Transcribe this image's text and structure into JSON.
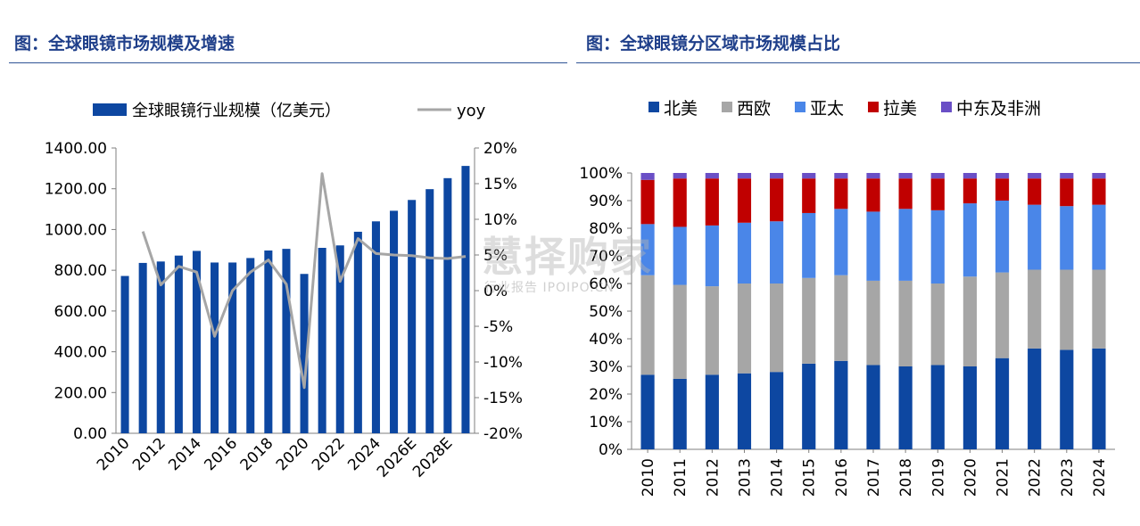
{
  "chart_data": [
    {
      "type": "bar",
      "title": "图：全球眼镜市场规模及增速",
      "categories": [
        "2010",
        "2011",
        "2012",
        "2013",
        "2014",
        "2015",
        "2016",
        "2017",
        "2018",
        "2019",
        "2020",
        "2021",
        "2022",
        "2023",
        "2024",
        "2025",
        "2026E",
        "2027",
        "2028E",
        "2029"
      ],
      "x_tick_labels": [
        "2010",
        "2012",
        "2014",
        "2016",
        "2018",
        "2020",
        "2022",
        "2024",
        "2026E",
        "2028E"
      ],
      "series": [
        {
          "name": "全球眼镜行业规模（亿美元）",
          "type": "bar",
          "axis": "left",
          "color": "#0d47a1",
          "values": [
            772,
            836,
            843,
            872,
            895,
            838,
            838,
            860,
            897,
            905,
            782,
            910,
            922,
            989,
            1040,
            1092,
            1145,
            1198,
            1252,
            1312
          ]
        },
        {
          "name": "yoy",
          "type": "line",
          "axis": "right",
          "color": "#a6a6a6",
          "values": [
            null,
            8.3,
            0.8,
            3.4,
            2.6,
            -6.4,
            0.0,
            2.6,
            4.3,
            0.9,
            -13.6,
            16.4,
            1.3,
            7.3,
            5.2,
            5.0,
            4.9,
            4.6,
            4.5,
            4.8
          ]
        }
      ],
      "y_left": {
        "min": 0,
        "max": 1400,
        "ticks": [
          "0.00",
          "200.00",
          "400.00",
          "600.00",
          "800.00",
          "1000.00",
          "1200.00",
          "1400.00"
        ]
      },
      "y_right": {
        "min": -20,
        "max": 20,
        "ticks": [
          "-20%",
          "-15%",
          "-10%",
          "-5%",
          "0%",
          "5%",
          "10%",
          "15%",
          "20%"
        ]
      },
      "legend_position": "top",
      "grid": false
    },
    {
      "type": "bar",
      "stacked": true,
      "percent": true,
      "title": "图：全球眼镜分区域市场规模占比",
      "categories": [
        "2010",
        "2011",
        "2012",
        "2013",
        "2014",
        "2015",
        "2016",
        "2017",
        "2018",
        "2019",
        "2020",
        "2021",
        "2022",
        "2023",
        "2024"
      ],
      "series": [
        {
          "name": "北美",
          "color": "#0d47a1",
          "values": [
            27,
            25.5,
            27,
            27.5,
            28,
            31,
            32,
            30.5,
            30,
            30.5,
            30,
            33,
            36.5,
            36,
            36.5
          ]
        },
        {
          "name": "西欧",
          "color": "#a6a6a6",
          "values": [
            36,
            34,
            32,
            32.5,
            32,
            31,
            31,
            30.5,
            31,
            29.5,
            32.5,
            31,
            28.5,
            29,
            28.5
          ]
        },
        {
          "name": "亚太",
          "color": "#4a86e8",
          "values": [
            18.5,
            21,
            22,
            22,
            22.5,
            23.5,
            24,
            25,
            26,
            26.5,
            26.5,
            26,
            23.5,
            23,
            23.5
          ]
        },
        {
          "name": "拉美",
          "color": "#c00000",
          "values": [
            16,
            17.5,
            17,
            16,
            15.5,
            12.5,
            11,
            12,
            11,
            11.5,
            9,
            8,
            9.5,
            10,
            9.5
          ]
        },
        {
          "name": "中东及非洲",
          "color": "#6a4fc6",
          "values": [
            2.5,
            2,
            2,
            2,
            2,
            2,
            2,
            2,
            2,
            2,
            2,
            2,
            2,
            2,
            2
          ]
        }
      ],
      "y": {
        "min": 0,
        "max": 100,
        "ticks": [
          "0%",
          "10%",
          "20%",
          "30%",
          "40%",
          "50%",
          "60%",
          "70%",
          "80%",
          "90%",
          "100%"
        ]
      },
      "legend_position": "top",
      "grid": false
    }
  ],
  "watermark": {
    "main": "慧择购家",
    "sub": "行业报告 IPOIPO.CN"
  }
}
